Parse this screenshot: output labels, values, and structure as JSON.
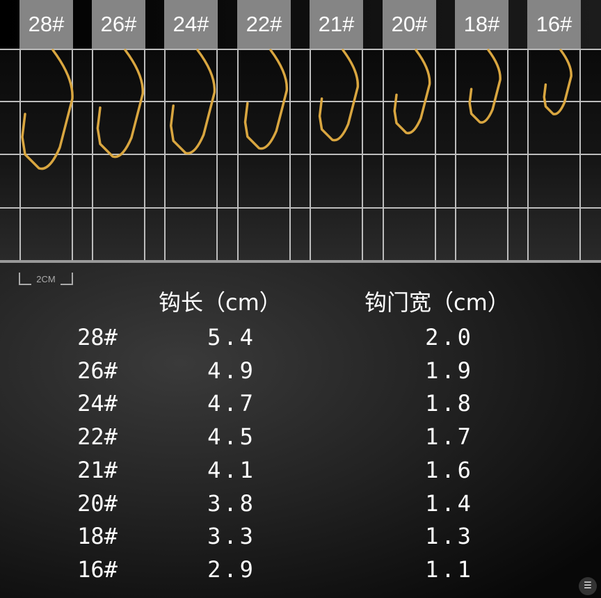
{
  "sizes": [
    "28#",
    "26#",
    "24#",
    "22#",
    "21#",
    "20#",
    "18#",
    "16#"
  ],
  "scale_label": "2CM",
  "table": {
    "headers": {
      "size": "",
      "length": "钩长（cm）",
      "gap": "钩门宽（cm）"
    },
    "rows": [
      {
        "size": "28#",
        "length": "5.4",
        "gap": "2.0"
      },
      {
        "size": "26#",
        "length": "4.9",
        "gap": "1.9"
      },
      {
        "size": "24#",
        "length": "4.7",
        "gap": "1.8"
      },
      {
        "size": "22#",
        "length": "4.5",
        "gap": "1.7"
      },
      {
        "size": "21#",
        "length": "4.1",
        "gap": "1.6"
      },
      {
        "size": "20#",
        "length": "3.8",
        "gap": "1.4"
      },
      {
        "size": "18#",
        "length": "3.3",
        "gap": "1.3"
      },
      {
        "size": "16#",
        "length": "2.9",
        "gap": "1.1"
      }
    ]
  },
  "colors": {
    "hook": "#d9a640",
    "label_bg": "#858585",
    "grid": "#bdbdbd"
  },
  "icons": {
    "ocr": "text-scan-icon"
  }
}
